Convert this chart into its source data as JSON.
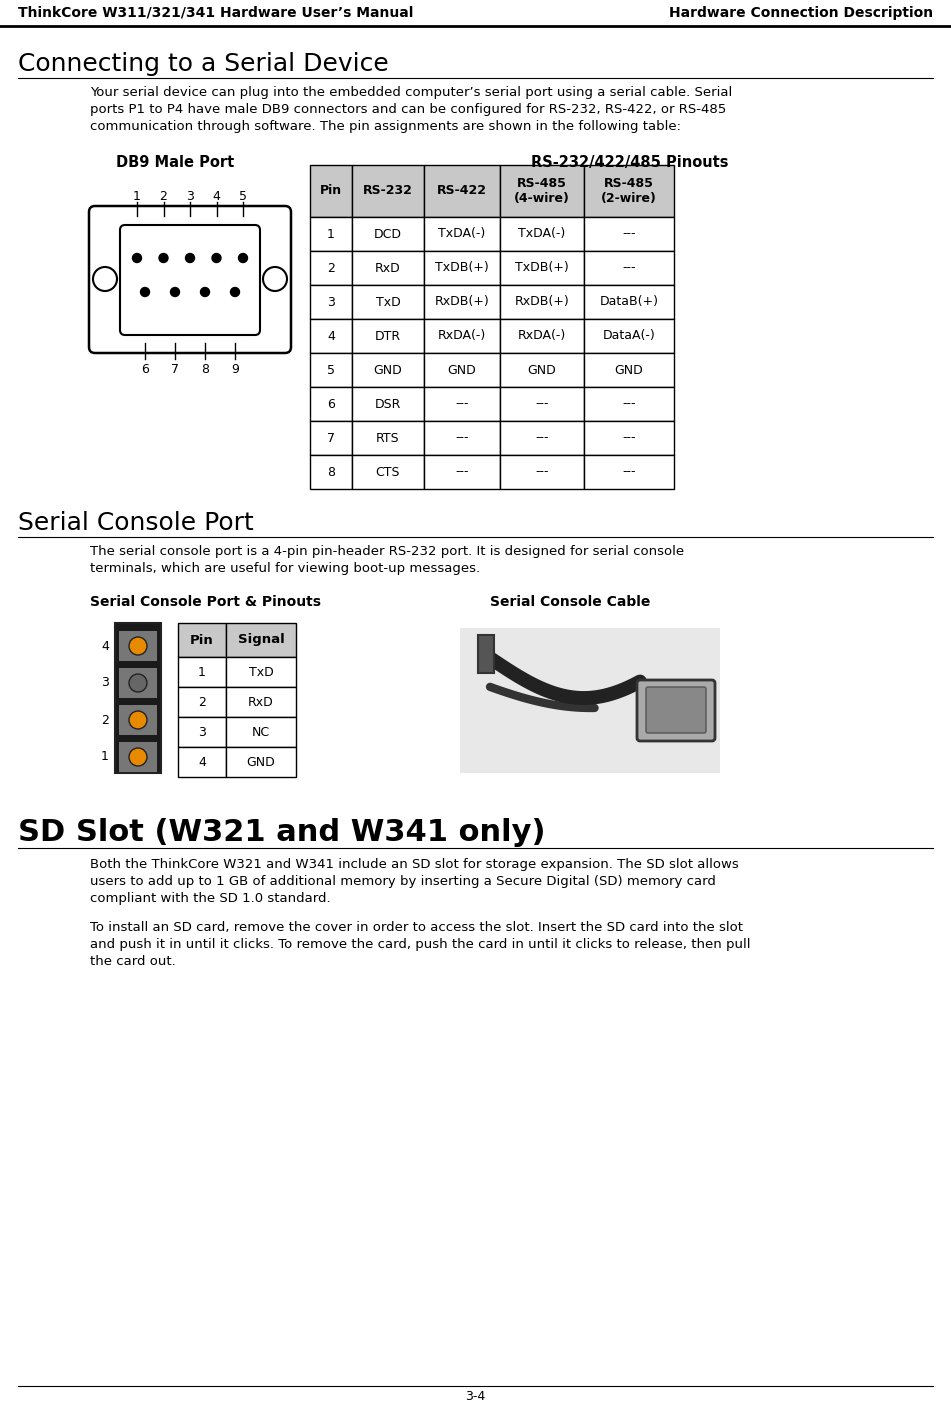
{
  "header_left": "ThinkCore W311/321/341 Hardware User’s Manual",
  "header_right": "Hardware Connection Description",
  "section1_title": "Connecting to a Serial Device",
  "section1_body_lines": [
    "Your serial device can plug into the embedded computer’s serial port using a serial cable. Serial",
    "ports P1 to P4 have male DB9 connectors and can be configured for RS-232, RS-422, or RS-485",
    "communication through software. The pin assignments are shown in the following table:"
  ],
  "db9_label": "DB9 Male Port",
  "pinouts_label": "RS-232/422/485 Pinouts",
  "table1_headers": [
    "Pin",
    "RS-232",
    "RS-422",
    "RS-485\n(4-wire)",
    "RS-485\n(2-wire)"
  ],
  "table1_rows": [
    [
      "1",
      "DCD",
      "TxDA(-)",
      "TxDA(-)",
      "---"
    ],
    [
      "2",
      "RxD",
      "TxDB(+)",
      "TxDB(+)",
      "---"
    ],
    [
      "3",
      "TxD",
      "RxDB(+)",
      "RxDB(+)",
      "DataB(+)"
    ],
    [
      "4",
      "DTR",
      "RxDA(-)",
      "RxDA(-)",
      "DataA(-)"
    ],
    [
      "5",
      "GND",
      "GND",
      "GND",
      "GND"
    ],
    [
      "6",
      "DSR",
      "---",
      "---",
      "---"
    ],
    [
      "7",
      "RTS",
      "---",
      "---",
      "---"
    ],
    [
      "8",
      "CTS",
      "---",
      "---",
      "---"
    ]
  ],
  "section2_title": "Serial Console Port",
  "section2_body_lines": [
    "The serial console port is a 4-pin pin-header RS-232 port. It is designed for serial console",
    "terminals, which are useful for viewing boot-up messages."
  ],
  "console_port_label": "Serial Console Port & Pinouts",
  "console_cable_label": "Serial Console Cable",
  "table2_headers": [
    "Pin",
    "Signal"
  ],
  "table2_rows": [
    [
      "1",
      "TxD"
    ],
    [
      "2",
      "RxD"
    ],
    [
      "3",
      "NC"
    ],
    [
      "4",
      "GND"
    ]
  ],
  "section3_title": "SD Slot (W321 and W341 only)",
  "section3_body1_lines": [
    "Both the ThinkCore W321 and W341 include an SD slot for storage expansion. The SD slot allows",
    "users to add up to 1 GB of additional memory by inserting a Secure Digital (SD) memory card",
    "compliant with the SD 1.0 standard."
  ],
  "section3_body2_lines": [
    "To install an SD card, remove the cover in order to access the slot. Insert the SD card into the slot",
    "and push it in until it clicks. To remove the card, push the card in until it clicks to release, then pull",
    "the card out."
  ],
  "footer": "3-4",
  "bg_color": "#ffffff",
  "table_header_bg": "#c8c8c8",
  "table_border": "#000000",
  "orange_pin": "#e88a00"
}
